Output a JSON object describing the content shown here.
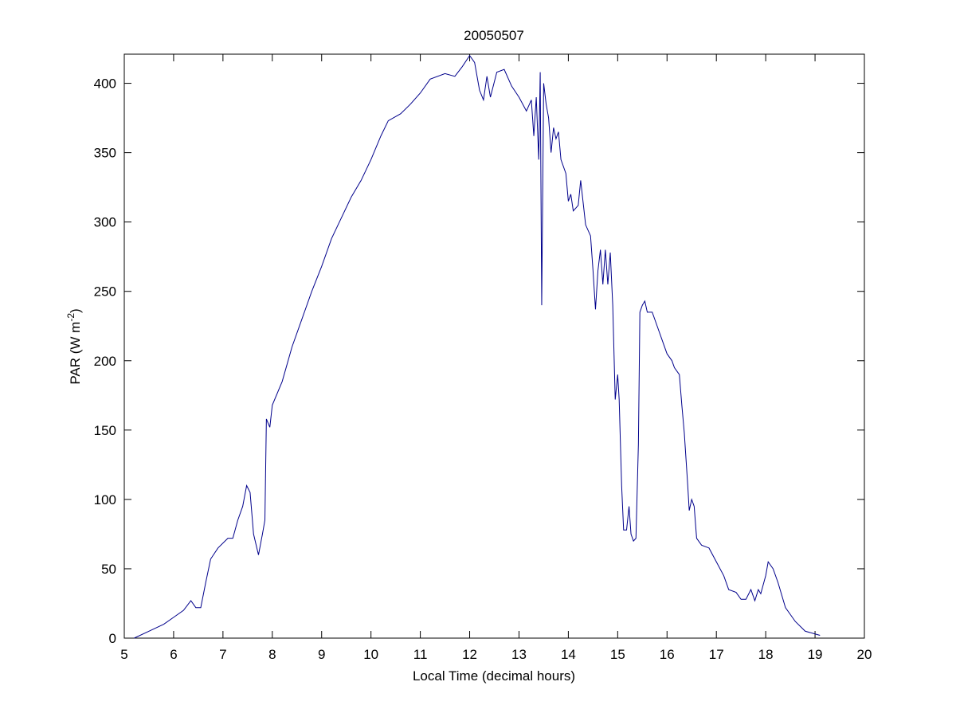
{
  "chart_data": {
    "type": "line",
    "title": "20050507",
    "xlabel": "Local Time (decimal hours)",
    "ylabel": [
      "PAR (W m",
      "-2",
      ")"
    ],
    "color": "#00008b",
    "xlim": [
      5,
      20
    ],
    "xticks": [
      5,
      6,
      7,
      8,
      9,
      10,
      11,
      12,
      13,
      14,
      15,
      16,
      17,
      18,
      19,
      20
    ],
    "ylim": [
      0,
      421
    ],
    "yticks": [
      0,
      50,
      100,
      150,
      200,
      250,
      300,
      350,
      400
    ],
    "x": [
      5.2,
      5.5,
      5.8,
      6.0,
      6.2,
      6.35,
      6.45,
      6.55,
      6.65,
      6.75,
      6.9,
      7.1,
      7.2,
      7.3,
      7.4,
      7.48,
      7.55,
      7.62,
      7.72,
      7.8,
      7.85,
      7.88,
      7.95,
      8.0,
      8.2,
      8.4,
      8.6,
      8.8,
      9.0,
      9.2,
      9.4,
      9.6,
      9.8,
      10.0,
      10.2,
      10.35,
      10.6,
      10.8,
      11.0,
      11.2,
      11.5,
      11.7,
      11.85,
      12.0,
      12.1,
      12.2,
      12.28,
      12.35,
      12.42,
      12.55,
      12.7,
      12.85,
      13.0,
      13.15,
      13.25,
      13.3,
      13.35,
      13.4,
      13.43,
      13.46,
      13.5,
      13.55,
      13.6,
      13.65,
      13.7,
      13.75,
      13.8,
      13.85,
      13.95,
      14.0,
      14.05,
      14.1,
      14.2,
      14.25,
      14.35,
      14.45,
      14.5,
      14.55,
      14.6,
      14.65,
      14.7,
      14.75,
      14.8,
      14.85,
      14.9,
      14.95,
      15.0,
      15.03,
      15.08,
      15.12,
      15.18,
      15.23,
      15.27,
      15.32,
      15.37,
      15.42,
      15.45,
      15.5,
      15.55,
      15.6,
      15.7,
      15.8,
      15.9,
      16.0,
      16.1,
      16.15,
      16.25,
      16.3,
      16.35,
      16.42,
      16.45,
      16.5,
      16.55,
      16.6,
      16.7,
      16.85,
      17.0,
      17.15,
      17.25,
      17.4,
      17.5,
      17.6,
      17.7,
      17.78,
      17.85,
      17.9,
      18.0,
      18.05,
      18.15,
      18.25,
      18.4,
      18.6,
      18.8,
      19.0,
      19.1
    ],
    "values": [
      0,
      5,
      10,
      15,
      20,
      27,
      22,
      22,
      40,
      57,
      65,
      72,
      72,
      85,
      95,
      110,
      105,
      75,
      60,
      75,
      85,
      158,
      152,
      168,
      185,
      210,
      230,
      250,
      268,
      288,
      303,
      318,
      330,
      345,
      362,
      373,
      378,
      385,
      393,
      403,
      407,
      405,
      412,
      420,
      415,
      395,
      388,
      405,
      390,
      408,
      410,
      398,
      390,
      380,
      388,
      362,
      390,
      345,
      408,
      240,
      400,
      385,
      375,
      350,
      368,
      360,
      365,
      345,
      335,
      315,
      320,
      308,
      312,
      330,
      298,
      290,
      265,
      237,
      265,
      280,
      255,
      280,
      255,
      278,
      240,
      172,
      190,
      172,
      110,
      78,
      78,
      95,
      75,
      70,
      72,
      140,
      235,
      240,
      243,
      235,
      235,
      225,
      215,
      205,
      200,
      195,
      190,
      168,
      148,
      110,
      92,
      100,
      95,
      72,
      67,
      65,
      55,
      45,
      35,
      33,
      28,
      28,
      35,
      27,
      35,
      32,
      45,
      55,
      50,
      40,
      22,
      12,
      5,
      3,
      2
    ]
  }
}
